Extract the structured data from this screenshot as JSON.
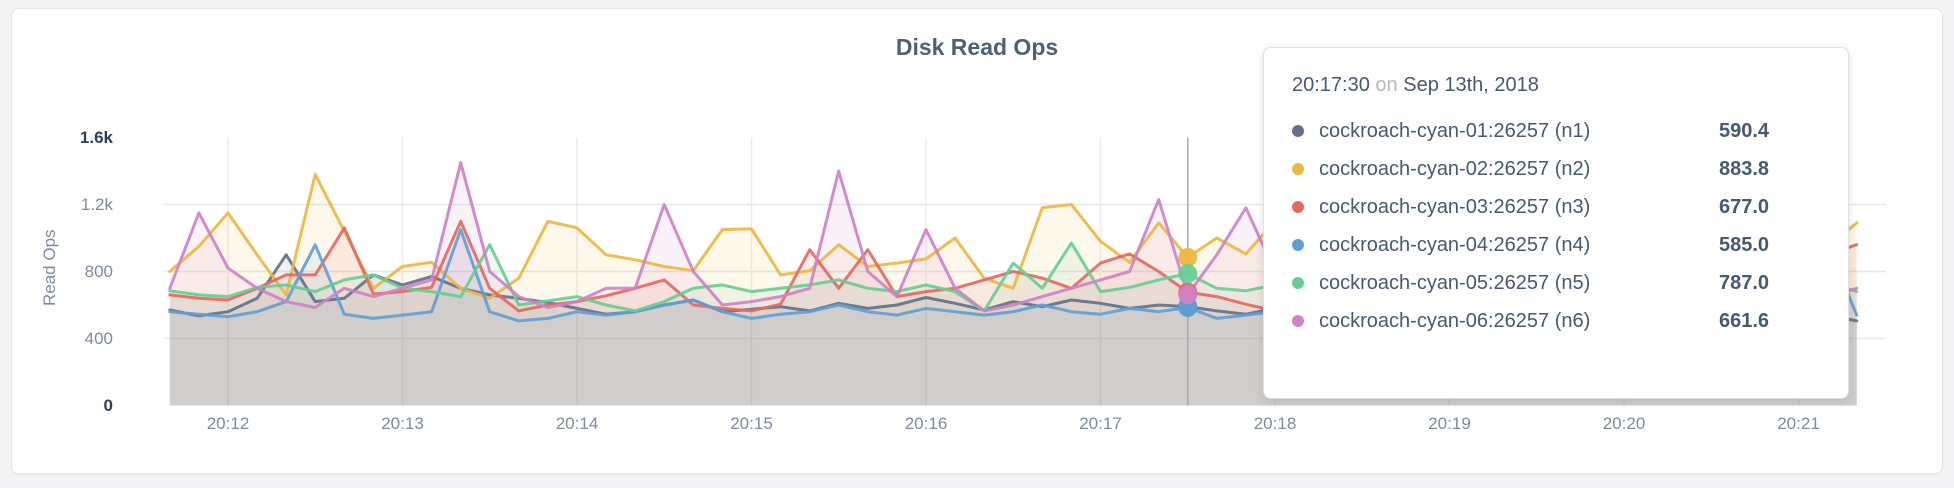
{
  "chart_data": {
    "type": "area",
    "title": "Disk Read Ops",
    "ylabel": "Read Ops",
    "ylim": [
      0,
      1600
    ],
    "grid": true,
    "legend_position": "none",
    "x_start_label": "20:11:40",
    "x_interval_seconds": 10,
    "x_tick_labels": [
      "20:12",
      "20:13",
      "20:14",
      "20:15",
      "20:16",
      "20:17",
      "20:18",
      "20:19",
      "20:20",
      "20:21"
    ],
    "y_ticks": [
      {
        "label": "0",
        "value": 0,
        "gridline": false
      },
      {
        "label": "400",
        "value": 400,
        "gridline": true
      },
      {
        "label": "800",
        "value": 800,
        "gridline": true
      },
      {
        "label": "1.2k",
        "value": 1200,
        "gridline": true
      },
      {
        "label": "1.6k",
        "value": 1600,
        "gridline": false
      }
    ],
    "series": [
      {
        "name": "cockroach-cyan-01:26257 (n1)",
        "color": "#65718C",
        "values": [
          570,
          535,
          560,
          640,
          900,
          620,
          640,
          780,
          720,
          770,
          700,
          660,
          640,
          615,
          580,
          545,
          560,
          600,
          630,
          560,
          575,
          590,
          565,
          610,
          580,
          600,
          645,
          610,
          570,
          620,
          590,
          630,
          610,
          580,
          600,
          590.4,
          565,
          545,
          580,
          560,
          600,
          570,
          550,
          560,
          580,
          565,
          555,
          540,
          560,
          580,
          560,
          570,
          550,
          535,
          560,
          545,
          560,
          540,
          505
        ]
      },
      {
        "name": "cockroach-cyan-02:26257 (n2)",
        "color": "#EDB743",
        "values": [
          800,
          950,
          1150,
          900,
          660,
          1380,
          1040,
          700,
          830,
          855,
          700,
          640,
          760,
          1100,
          1060,
          900,
          870,
          830,
          805,
          1050,
          1055,
          780,
          805,
          960,
          830,
          850,
          875,
          1000,
          760,
          700,
          1180,
          1200,
          980,
          855,
          1090,
          883.8,
          1000,
          905,
          1100,
          950,
          900,
          855,
          905,
          950,
          900,
          855,
          900,
          950,
          855,
          800,
          850,
          900,
          850,
          805,
          900,
          850,
          705,
          950,
          1090
        ]
      },
      {
        "name": "cockroach-cyan-03:26257 (n3)",
        "color": "#E46962",
        "values": [
          660,
          640,
          630,
          700,
          780,
          780,
          1060,
          665,
          680,
          705,
          1100,
          700,
          565,
          600,
          620,
          655,
          700,
          750,
          600,
          580,
          565,
          605,
          930,
          700,
          930,
          650,
          680,
          700,
          750,
          800,
          760,
          700,
          850,
          905,
          800,
          677,
          650,
          605,
          565,
          600,
          650,
          700,
          650,
          605,
          620,
          650,
          700,
          650,
          605,
          620,
          650,
          605,
          650,
          600,
          620,
          650,
          605,
          900,
          960
        ]
      },
      {
        "name": "cockroach-cyan-04:26257 (n4)",
        "color": "#5F9FD4",
        "values": [
          560,
          545,
          530,
          560,
          620,
          960,
          545,
          520,
          540,
          560,
          1050,
          560,
          505,
          520,
          560,
          540,
          560,
          600,
          630,
          560,
          520,
          545,
          560,
          600,
          560,
          540,
          580,
          560,
          540,
          560,
          600,
          560,
          545,
          580,
          560,
          585,
          520,
          540,
          560,
          540,
          520,
          560,
          545,
          560,
          540,
          560,
          580,
          560,
          540,
          560,
          545,
          560,
          540,
          560,
          545,
          560,
          700,
          960,
          540
        ]
      },
      {
        "name": "cockroach-cyan-05:26257 (n5)",
        "color": "#67CD93",
        "values": [
          685,
          660,
          650,
          705,
          720,
          680,
          750,
          780,
          700,
          680,
          650,
          960,
          600,
          625,
          650,
          600,
          565,
          620,
          700,
          720,
          680,
          700,
          720,
          750,
          700,
          680,
          720,
          680,
          565,
          850,
          700,
          970,
          680,
          705,
          750,
          787,
          700,
          685,
          720,
          700,
          680,
          700,
          720,
          700,
          680,
          700,
          720,
          700,
          680,
          700,
          720,
          700,
          680,
          700,
          720,
          1050,
          800,
          735,
          680
        ]
      },
      {
        "name": "cockroach-cyan-06:26257 (n6)",
        "color": "#CF82C6",
        "values": [
          700,
          1150,
          820,
          700,
          620,
          585,
          700,
          650,
          700,
          750,
          1450,
          800,
          650,
          585,
          620,
          700,
          700,
          1200,
          800,
          600,
          620,
          650,
          700,
          1400,
          800,
          650,
          1050,
          700,
          565,
          600,
          650,
          700,
          750,
          800,
          1230,
          661.6,
          900,
          1180,
          800,
          700,
          650,
          700,
          750,
          700,
          650,
          700,
          750,
          700,
          650,
          700,
          1150,
          800,
          700,
          650,
          700,
          750,
          700,
          650,
          700
        ]
      }
    ]
  },
  "tooltip": {
    "time": "20:17:30",
    "on_word": "on",
    "date": "Sep 13th, 2018",
    "hover_index": 35,
    "rows": [
      {
        "label": "cockroach-cyan-01:26257 (n1)",
        "value": "590.4",
        "color": "#65718C"
      },
      {
        "label": "cockroach-cyan-02:26257 (n2)",
        "value": "883.8",
        "color": "#EDB743"
      },
      {
        "label": "cockroach-cyan-03:26257 (n3)",
        "value": "677.0",
        "color": "#E46962"
      },
      {
        "label": "cockroach-cyan-04:26257 (n4)",
        "value": "585.0",
        "color": "#5F9FD4"
      },
      {
        "label": "cockroach-cyan-05:26257 (n5)",
        "value": "787.0",
        "color": "#67CD93"
      },
      {
        "label": "cockroach-cyan-06:26257 (n6)",
        "value": "661.6",
        "color": "#CF82C6"
      }
    ]
  }
}
